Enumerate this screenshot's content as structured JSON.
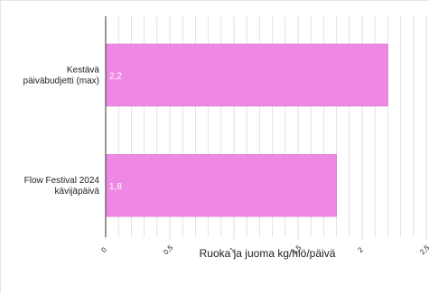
{
  "chart_data": {
    "type": "bar",
    "orientation": "horizontal",
    "categories": [
      [
        "Kestävä",
        "päiväbudjetti (max)"
      ],
      [
        "Flow Festival 2024",
        "kävijäpäivä"
      ]
    ],
    "values": [
      2.2,
      1.8
    ],
    "data_labels": [
      "2,2",
      "1,8"
    ],
    "xlabel": "Ruoka ja juoma kg/hlö/päivä",
    "ylabel": "",
    "title": "",
    "xlim": [
      0,
      2.5
    ],
    "x_ticks": [
      0,
      0.5,
      1,
      1.5,
      2,
      2.5
    ],
    "x_tick_labels": [
      "0",
      "0,5",
      "1",
      "1,5",
      "2",
      "2,5"
    ],
    "grid": true,
    "legend": "none",
    "colors": {
      "bar": "#ee88e4",
      "bar_stroke": "#d977cf",
      "grid": "#dddddd",
      "axis": "#333333",
      "text": "#222222",
      "data_label": "#ffffff"
    }
  }
}
